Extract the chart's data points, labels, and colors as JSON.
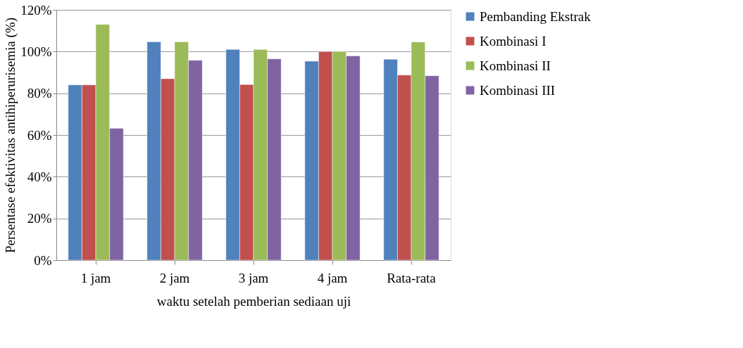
{
  "chart_data": {
    "type": "bar",
    "xlabel": "waktu setelah pemberian sediaan uji",
    "ylabel": "Persentase efektivitas antihiperurisemia (%)",
    "categories": [
      "1 jam",
      "2 jam",
      "3 jam",
      "4 jam",
      "Rata-rata"
    ],
    "series": [
      {
        "name": "Pembanding Ekstrak",
        "color": "#4f81bd",
        "values": [
          84,
          104.7,
          101,
          95.4,
          96.3
        ]
      },
      {
        "name": "Kombinasi I",
        "color": "#c0504d",
        "values": [
          84,
          87,
          84.2,
          100,
          88.7
        ]
      },
      {
        "name": "Kombinasi II",
        "color": "#9bbb59",
        "values": [
          113,
          104.7,
          101,
          100,
          104.6
        ]
      },
      {
        "name": "Kombinasi III",
        "color": "#8064a2",
        "values": [
          63.2,
          95.8,
          96.5,
          97.9,
          88.4
        ]
      }
    ],
    "ylim": [
      0,
      120
    ],
    "yticks": [
      {
        "value": 0,
        "label": "0%"
      },
      {
        "value": 20,
        "label": "20%"
      },
      {
        "value": 40,
        "label": "40%"
      },
      {
        "value": 60,
        "label": "60%"
      },
      {
        "value": 80,
        "label": "80%"
      },
      {
        "value": 100,
        "label": "100%"
      },
      {
        "value": 120,
        "label": "120%"
      }
    ],
    "grid": "y",
    "legend": "right"
  }
}
